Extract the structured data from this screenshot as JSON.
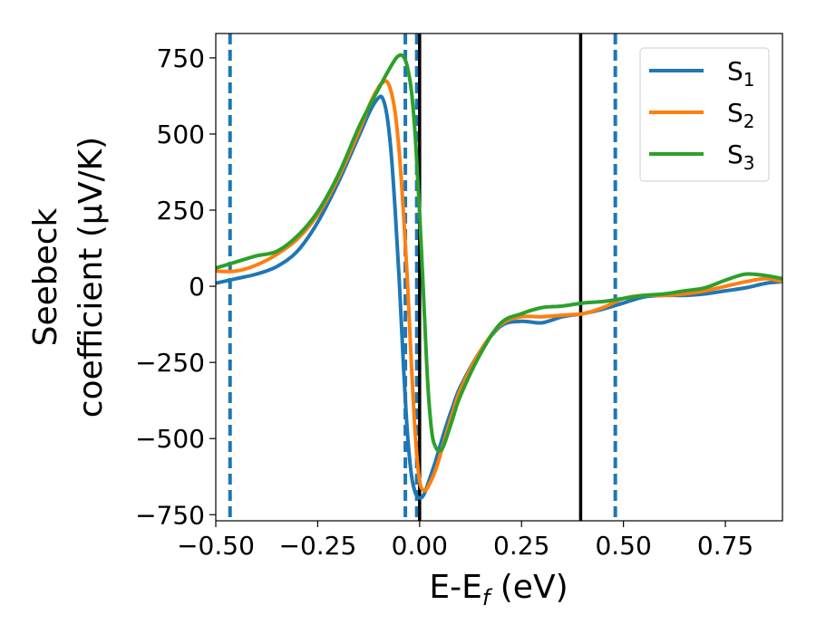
{
  "chart_data": {
    "type": "line",
    "xlabel": {
      "main": "E-E",
      "sub": "f",
      "unit": " (eV)"
    },
    "ylabel": {
      "line1": "Seebeck",
      "line2": "coefficient  (μV/K)"
    },
    "xlim": [
      -0.5,
      0.89
    ],
    "ylim": [
      -770,
      830
    ],
    "xticks": [
      -0.5,
      -0.25,
      0.0,
      0.25,
      0.5,
      0.75
    ],
    "xtick_labels": [
      "−0.50",
      "−0.25",
      "0.00",
      "0.25",
      "0.50",
      "0.75"
    ],
    "yticks": [
      -750,
      -500,
      -250,
      0,
      250,
      500,
      750
    ],
    "ytick_labels": [
      "−750",
      "−500",
      "−250",
      "0",
      "250",
      "500",
      "750"
    ],
    "legend_position": "top-right",
    "grid": false,
    "series": [
      {
        "name": "S",
        "sub": "1",
        "color": "#1f77b4",
        "x": [
          -0.5,
          -0.45,
          -0.4,
          -0.35,
          -0.3,
          -0.25,
          -0.2,
          -0.15,
          -0.12,
          -0.1,
          -0.09,
          -0.08,
          -0.07,
          -0.06,
          -0.05,
          -0.04,
          -0.03,
          -0.02,
          -0.01,
          0.0,
          0.01,
          0.02,
          0.04,
          0.06,
          0.08,
          0.1,
          0.15,
          0.2,
          0.25,
          0.3,
          0.35,
          0.4,
          0.45,
          0.5,
          0.55,
          0.6,
          0.65,
          0.7,
          0.75,
          0.8,
          0.85,
          0.89
        ],
        "y": [
          10,
          25,
          40,
          65,
          115,
          210,
          340,
          490,
          580,
          620,
          615,
          560,
          440,
          250,
          20,
          -250,
          -480,
          -620,
          -680,
          -695,
          -685,
          -650,
          -570,
          -480,
          -400,
          -330,
          -210,
          -130,
          -115,
          -120,
          -100,
          -90,
          -75,
          -55,
          -35,
          -30,
          -30,
          -25,
          -15,
          -5,
          10,
          15
        ]
      },
      {
        "name": "S",
        "sub": "2",
        "color": "#ff7f0e",
        "x": [
          -0.5,
          -0.45,
          -0.4,
          -0.35,
          -0.3,
          -0.25,
          -0.2,
          -0.15,
          -0.12,
          -0.1,
          -0.09,
          -0.08,
          -0.07,
          -0.06,
          -0.05,
          -0.04,
          -0.03,
          -0.02,
          -0.01,
          0.0,
          0.01,
          0.02,
          0.04,
          0.06,
          0.08,
          0.1,
          0.15,
          0.2,
          0.25,
          0.3,
          0.35,
          0.4,
          0.45,
          0.5,
          0.55,
          0.6,
          0.65,
          0.7,
          0.75,
          0.8,
          0.85,
          0.89
        ],
        "y": [
          50,
          50,
          70,
          105,
          155,
          235,
          355,
          505,
          605,
          655,
          670,
          672,
          640,
          570,
          440,
          250,
          20,
          -260,
          -500,
          -640,
          -670,
          -660,
          -600,
          -510,
          -420,
          -340,
          -210,
          -125,
          -100,
          -100,
          -95,
          -90,
          -70,
          -40,
          -30,
          -30,
          -25,
          -15,
          0,
          15,
          25,
          15
        ]
      },
      {
        "name": "S",
        "sub": "3",
        "color": "#2ca02c",
        "x": [
          -0.5,
          -0.45,
          -0.4,
          -0.35,
          -0.3,
          -0.25,
          -0.2,
          -0.15,
          -0.12,
          -0.1,
          -0.08,
          -0.06,
          -0.05,
          -0.04,
          -0.03,
          -0.02,
          -0.01,
          0.0,
          0.01,
          0.02,
          0.03,
          0.04,
          0.05,
          0.06,
          0.08,
          0.1,
          0.15,
          0.2,
          0.25,
          0.3,
          0.35,
          0.4,
          0.45,
          0.5,
          0.55,
          0.6,
          0.65,
          0.7,
          0.75,
          0.8,
          0.85,
          0.89
        ],
        "y": [
          60,
          80,
          100,
          115,
          165,
          245,
          365,
          520,
          600,
          650,
          700,
          745,
          758,
          755,
          720,
          640,
          480,
          240,
          -40,
          -320,
          -480,
          -530,
          -540,
          -520,
          -440,
          -360,
          -220,
          -120,
          -90,
          -70,
          -65,
          -55,
          -50,
          -40,
          -30,
          -25,
          -15,
          -5,
          20,
          40,
          35,
          25
        ]
      }
    ],
    "vlines": [
      {
        "x": -0.465,
        "color": "#1f77b4",
        "style": "dashed"
      },
      {
        "x": -0.035,
        "color": "#1f77b4",
        "style": "dashed"
      },
      {
        "x": -0.007,
        "color": "#1f77b4",
        "style": "dashed"
      },
      {
        "x": 0.0,
        "color": "#000000",
        "style": "solid"
      },
      {
        "x": 0.395,
        "color": "#000000",
        "style": "solid"
      },
      {
        "x": 0.48,
        "color": "#1f77b4",
        "style": "dashed"
      }
    ]
  }
}
